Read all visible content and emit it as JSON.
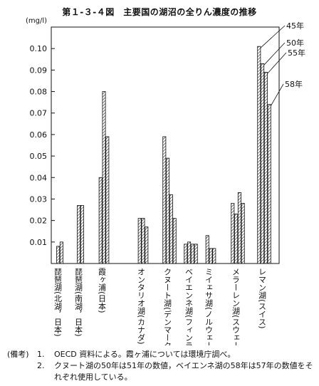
{
  "chart_data": {
    "type": "bar",
    "title": "第１-３-４図　主要国の湖沼の全りん濃度の推移",
    "ylabel": "(mg/l)",
    "ylim": [
      0,
      0.11
    ],
    "yticks": [
      "0.01",
      "0.02",
      "0.03",
      "0.04",
      "0.05",
      "0.06",
      "0.07",
      "0.08",
      "0.09",
      "0.10"
    ],
    "series_labels": [
      "45年",
      "50年",
      "55年",
      "58年"
    ],
    "categories": [
      "琵琶湖(北湖，日本)",
      "琵琶湖(南湖，日本)",
      "霞ヶ浦(日本)",
      "オンタリオ湖(カナダ)",
      "クヌート湖(デンマーク)",
      "ベイエンネ湖(フィンランド)",
      "ミイェサ湖(ノルウェー)",
      "メラーレン湖(スウェーデン)",
      "レマン湖(スイス)"
    ],
    "values": [
      [
        null,
        0.008,
        0.01,
        null
      ],
      [
        null,
        0.027,
        0.027,
        null
      ],
      [
        0.04,
        0.08,
        0.059,
        null
      ],
      [
        null,
        0.021,
        0.021,
        0.017
      ],
      [
        0.059,
        0.049,
        0.032,
        0.021
      ],
      [
        0.009,
        0.01,
        0.009,
        0.009
      ],
      [
        0.013,
        0.007,
        0.007,
        null
      ],
      [
        0.028,
        0.023,
        0.033,
        0.028
      ],
      [
        0.101,
        0.093,
        0.089,
        0.074
      ]
    ]
  },
  "notes": {
    "head": "(備考)",
    "items": [
      {
        "num": "1.",
        "text": "OECD 資料による。霞ヶ浦については環境庁調べ。"
      },
      {
        "num": "2.",
        "text": "クヌート湖の50年は51年の数値，ベイエンネ湖の58年は57年の数値をそれぞれ使用している。"
      }
    ]
  }
}
